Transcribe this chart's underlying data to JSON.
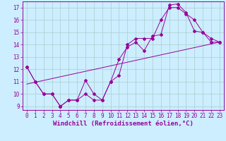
{
  "title": "",
  "xlabel": "Windchill (Refroidissement éolien,°C)",
  "background_color": "#cceeff",
  "grid_color": "#aacccc",
  "line_color": "#990099",
  "marker_color": "#990099",
  "xlim": [
    -0.5,
    23.5
  ],
  "ylim": [
    8.7,
    17.5
  ],
  "xticks": [
    0,
    1,
    2,
    3,
    4,
    5,
    6,
    7,
    8,
    9,
    10,
    11,
    12,
    13,
    14,
    15,
    16,
    17,
    18,
    19,
    20,
    21,
    22,
    23
  ],
  "yticks": [
    9,
    10,
    11,
    12,
    13,
    14,
    15,
    16,
    17
  ],
  "series1_x": [
    0,
    1,
    2,
    3,
    4,
    4,
    5,
    6,
    7,
    8,
    9,
    10,
    11,
    12,
    13,
    14,
    15,
    16,
    17,
    18,
    19,
    20,
    21,
    22,
    23
  ],
  "series1_y": [
    12.2,
    11.0,
    10.0,
    10.0,
    9.0,
    9.0,
    9.5,
    9.5,
    11.1,
    10.0,
    9.5,
    11.0,
    12.8,
    13.8,
    14.2,
    13.5,
    14.7,
    14.8,
    17.2,
    17.3,
    16.6,
    15.1,
    15.0,
    14.5,
    14.2
  ],
  "series2_x": [
    0,
    1,
    2,
    3,
    4,
    5,
    6,
    7,
    8,
    9,
    10,
    11,
    12,
    13,
    14,
    15,
    16,
    17,
    18,
    19,
    20,
    21,
    22,
    23
  ],
  "series2_y": [
    12.2,
    11.0,
    10.0,
    10.0,
    9.0,
    9.5,
    9.5,
    10.0,
    9.5,
    9.5,
    11.0,
    11.5,
    14.0,
    14.5,
    14.5,
    14.5,
    16.0,
    17.0,
    17.0,
    16.5,
    16.0,
    15.0,
    14.2,
    14.2
  ],
  "trend_x": [
    0,
    23
  ],
  "trend_y": [
    10.8,
    14.2
  ],
  "font_size": 5.5,
  "xlabel_fontsize": 6.5,
  "lw": 0.7,
  "ms": 2.0
}
